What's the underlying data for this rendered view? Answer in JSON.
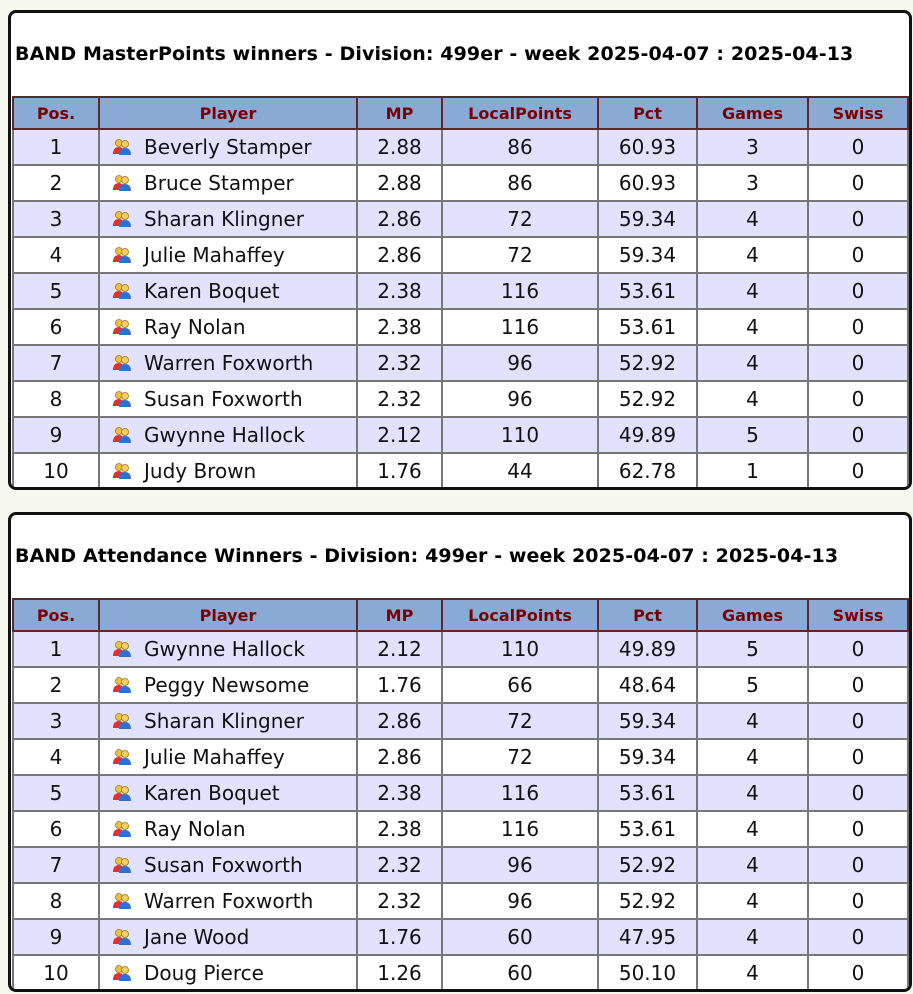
{
  "columns": [
    "Pos.",
    "Player",
    "MP",
    "LocalPoints",
    "Pct",
    "Games",
    "Swiss"
  ],
  "masterpoints": {
    "title": "BAND MasterPoints winners - Division: 499er - week 2025-04-07 : 2025-04-13",
    "rows": [
      [
        "1",
        "Beverly Stamper",
        "2.88",
        "86",
        "60.93",
        "3",
        "0"
      ],
      [
        "2",
        "Bruce Stamper",
        "2.88",
        "86",
        "60.93",
        "3",
        "0"
      ],
      [
        "3",
        "Sharan Klingner",
        "2.86",
        "72",
        "59.34",
        "4",
        "0"
      ],
      [
        "4",
        "Julie Mahaffey",
        "2.86",
        "72",
        "59.34",
        "4",
        "0"
      ],
      [
        "5",
        "Karen Boquet",
        "2.38",
        "116",
        "53.61",
        "4",
        "0"
      ],
      [
        "6",
        "Ray Nolan",
        "2.38",
        "116",
        "53.61",
        "4",
        "0"
      ],
      [
        "7",
        "Warren Foxworth",
        "2.32",
        "96",
        "52.92",
        "4",
        "0"
      ],
      [
        "8",
        "Susan Foxworth",
        "2.32",
        "96",
        "52.92",
        "4",
        "0"
      ],
      [
        "9",
        "Gwynne Hallock",
        "2.12",
        "110",
        "49.89",
        "5",
        "0"
      ],
      [
        "10",
        "Judy Brown",
        "1.76",
        "44",
        "62.78",
        "1",
        "0"
      ]
    ]
  },
  "attendance": {
    "title": "BAND Attendance Winners - Division: 499er - week 2025-04-07 : 2025-04-13",
    "rows": [
      [
        "1",
        "Gwynne Hallock",
        "2.12",
        "110",
        "49.89",
        "5",
        "0"
      ],
      [
        "2",
        "Peggy Newsome",
        "1.76",
        "66",
        "48.64",
        "5",
        "0"
      ],
      [
        "3",
        "Sharan Klingner",
        "2.86",
        "72",
        "59.34",
        "4",
        "0"
      ],
      [
        "4",
        "Julie Mahaffey",
        "2.86",
        "72",
        "59.34",
        "4",
        "0"
      ],
      [
        "5",
        "Karen Boquet",
        "2.38",
        "116",
        "53.61",
        "4",
        "0"
      ],
      [
        "6",
        "Ray Nolan",
        "2.38",
        "116",
        "53.61",
        "4",
        "0"
      ],
      [
        "7",
        "Susan Foxworth",
        "2.32",
        "96",
        "52.92",
        "4",
        "0"
      ],
      [
        "8",
        "Warren Foxworth",
        "2.32",
        "96",
        "52.92",
        "4",
        "0"
      ],
      [
        "9",
        "Jane Wood",
        "1.76",
        "60",
        "47.95",
        "4",
        "0"
      ],
      [
        "10",
        "Doug Pierce",
        "1.26",
        "60",
        "50.10",
        "4",
        "0"
      ]
    ]
  },
  "icon": "users-icon",
  "colors": {
    "header_bg": "#8aaad6",
    "header_text": "#7a0000",
    "row_alt": "#e2e2fe"
  }
}
